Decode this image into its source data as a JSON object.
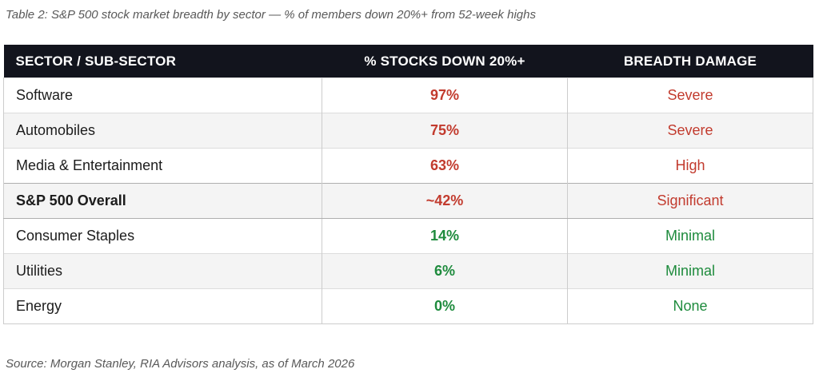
{
  "chart_data": {
    "type": "table",
    "title": "Table 2: S&P 500 stock market breadth by sector — % of members down 20%+ from 52-week highs",
    "source_note": "Source: Morgan Stanley, RIA Advisors analysis, as of March 2026",
    "columns": [
      "SECTOR / SUB-SECTOR",
      "% STOCKS DOWN 20%+",
      "BREADTH DAMAGE"
    ],
    "rows": [
      {
        "sector": "Software",
        "pct_down": "97%",
        "pct_down_value": 97,
        "damage": "Severe",
        "tone": "red",
        "emphasis": false
      },
      {
        "sector": "Automobiles",
        "pct_down": "75%",
        "pct_down_value": 75,
        "damage": "Severe",
        "tone": "red",
        "emphasis": false
      },
      {
        "sector": "Media & Entertainment",
        "pct_down": "63%",
        "pct_down_value": 63,
        "damage": "High",
        "tone": "red",
        "emphasis": false
      },
      {
        "sector": "S&P 500 Overall",
        "pct_down": "~42%",
        "pct_down_value": 42,
        "damage": "Significant",
        "tone": "red",
        "emphasis": true
      },
      {
        "sector": "Consumer Staples",
        "pct_down": "14%",
        "pct_down_value": 14,
        "damage": "Minimal",
        "tone": "green",
        "emphasis": false
      },
      {
        "sector": "Utilities",
        "pct_down": "6%",
        "pct_down_value": 6,
        "damage": "Minimal",
        "tone": "green",
        "emphasis": false
      },
      {
        "sector": "Energy",
        "pct_down": "0%",
        "pct_down_value": 0,
        "damage": "None",
        "tone": "green",
        "emphasis": false
      }
    ],
    "value_colors": {
      "red": "#c23b2e",
      "green": "#1e8b3d"
    },
    "header_bg": "#12141d"
  }
}
